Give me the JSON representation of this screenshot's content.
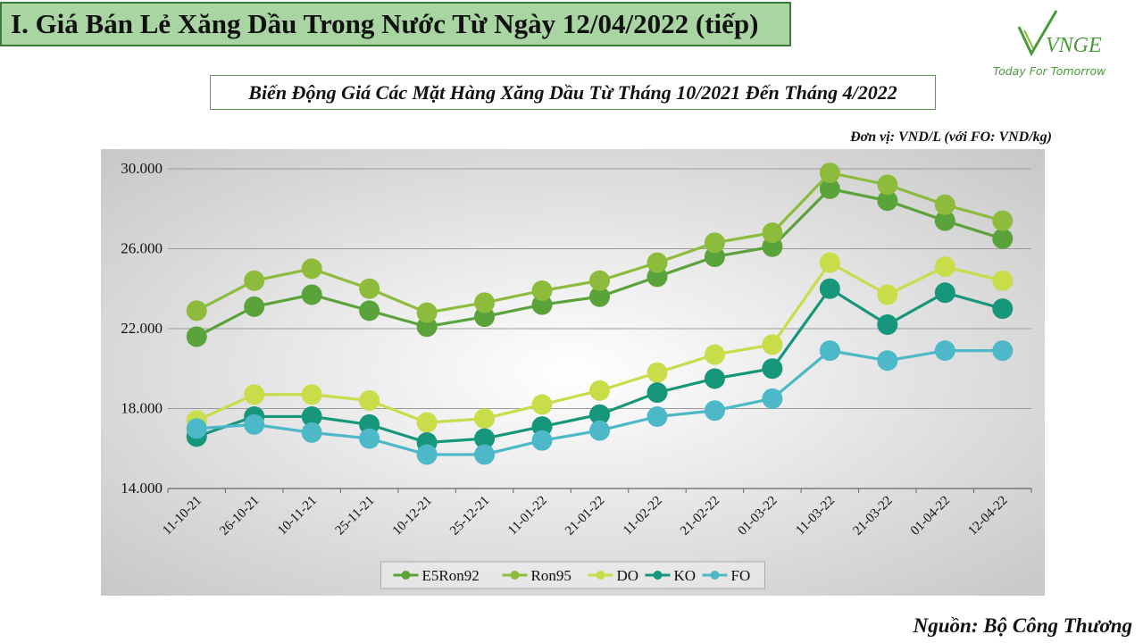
{
  "header": {
    "title": "I. Giá Bán Lẻ Xăng Dầu Trong Nước Từ Ngày 12/04/2022 (tiếp)",
    "logo_text": "VNGE",
    "logo_tagline": "Today For Tomorrow"
  },
  "chart_title": "Biến Động Giá Các Mặt Hàng Xăng Dầu Từ Tháng 10/2021 Đến Tháng 4/2022",
  "unit_note": "Đơn vị: VND/L (với FO: VND/kg)",
  "source": "Nguồn: Bộ Công Thương",
  "colors": {
    "title_bg": "#a8d5a2",
    "plot_bg_center": "#ffffff",
    "plot_bg_edge": "#c8c8c8",
    "E5Ron92": "#5aa33a",
    "Ron95": "#8dbb3c",
    "DO": "#c9dc4a",
    "KO": "#16967a",
    "FO": "#4db8c8"
  },
  "chart_data": {
    "type": "line",
    "title": "Biến Động Giá Các Mặt Hàng Xăng Dầu Từ Tháng 10/2021 Đến Tháng 4/2022",
    "categories": [
      "11-10-21",
      "26-10-21",
      "10-11-21",
      "25-11-21",
      "10-12-21",
      "25-12-21",
      "11-01-22",
      "21-01-22",
      "11-02-22",
      "21-02-22",
      "01-03-22",
      "11-03-22",
      "21-03-22",
      "01-04-22",
      "12-04-22"
    ],
    "ylim": [
      14000,
      30000
    ],
    "yticks": [
      14000,
      18000,
      22000,
      26000,
      30000
    ],
    "ytick_labels": [
      "14.000",
      "18.000",
      "22.000",
      "26.000",
      "30.000"
    ],
    "grid": true,
    "legend_position": "bottom",
    "series": [
      {
        "name": "E5Ron92",
        "color_key": "E5Ron92",
        "values": [
          21600,
          23100,
          23700,
          22900,
          22100,
          22600,
          23200,
          23600,
          24600,
          25600,
          26100,
          29000,
          28400,
          27400,
          26500
        ]
      },
      {
        "name": "Ron95",
        "color_key": "Ron95",
        "values": [
          22900,
          24400,
          25000,
          24000,
          22800,
          23300,
          23900,
          24400,
          25300,
          26300,
          26800,
          29800,
          29200,
          28200,
          27400
        ]
      },
      {
        "name": "DO",
        "color_key": "DO",
        "values": [
          17400,
          18700,
          18700,
          18400,
          17300,
          17500,
          18200,
          18900,
          19800,
          20700,
          21200,
          25300,
          23700,
          25100,
          24400
        ]
      },
      {
        "name": "KO",
        "color_key": "KO",
        "values": [
          16600,
          17600,
          17600,
          17200,
          16300,
          16500,
          17100,
          17700,
          18800,
          19500,
          20000,
          24000,
          22200,
          23800,
          23000
        ]
      },
      {
        "name": "FO",
        "color_key": "FO",
        "values": [
          17000,
          17200,
          16800,
          16500,
          15700,
          15700,
          16400,
          16900,
          17600,
          17900,
          18500,
          20900,
          20400,
          20900,
          20900
        ]
      }
    ]
  }
}
